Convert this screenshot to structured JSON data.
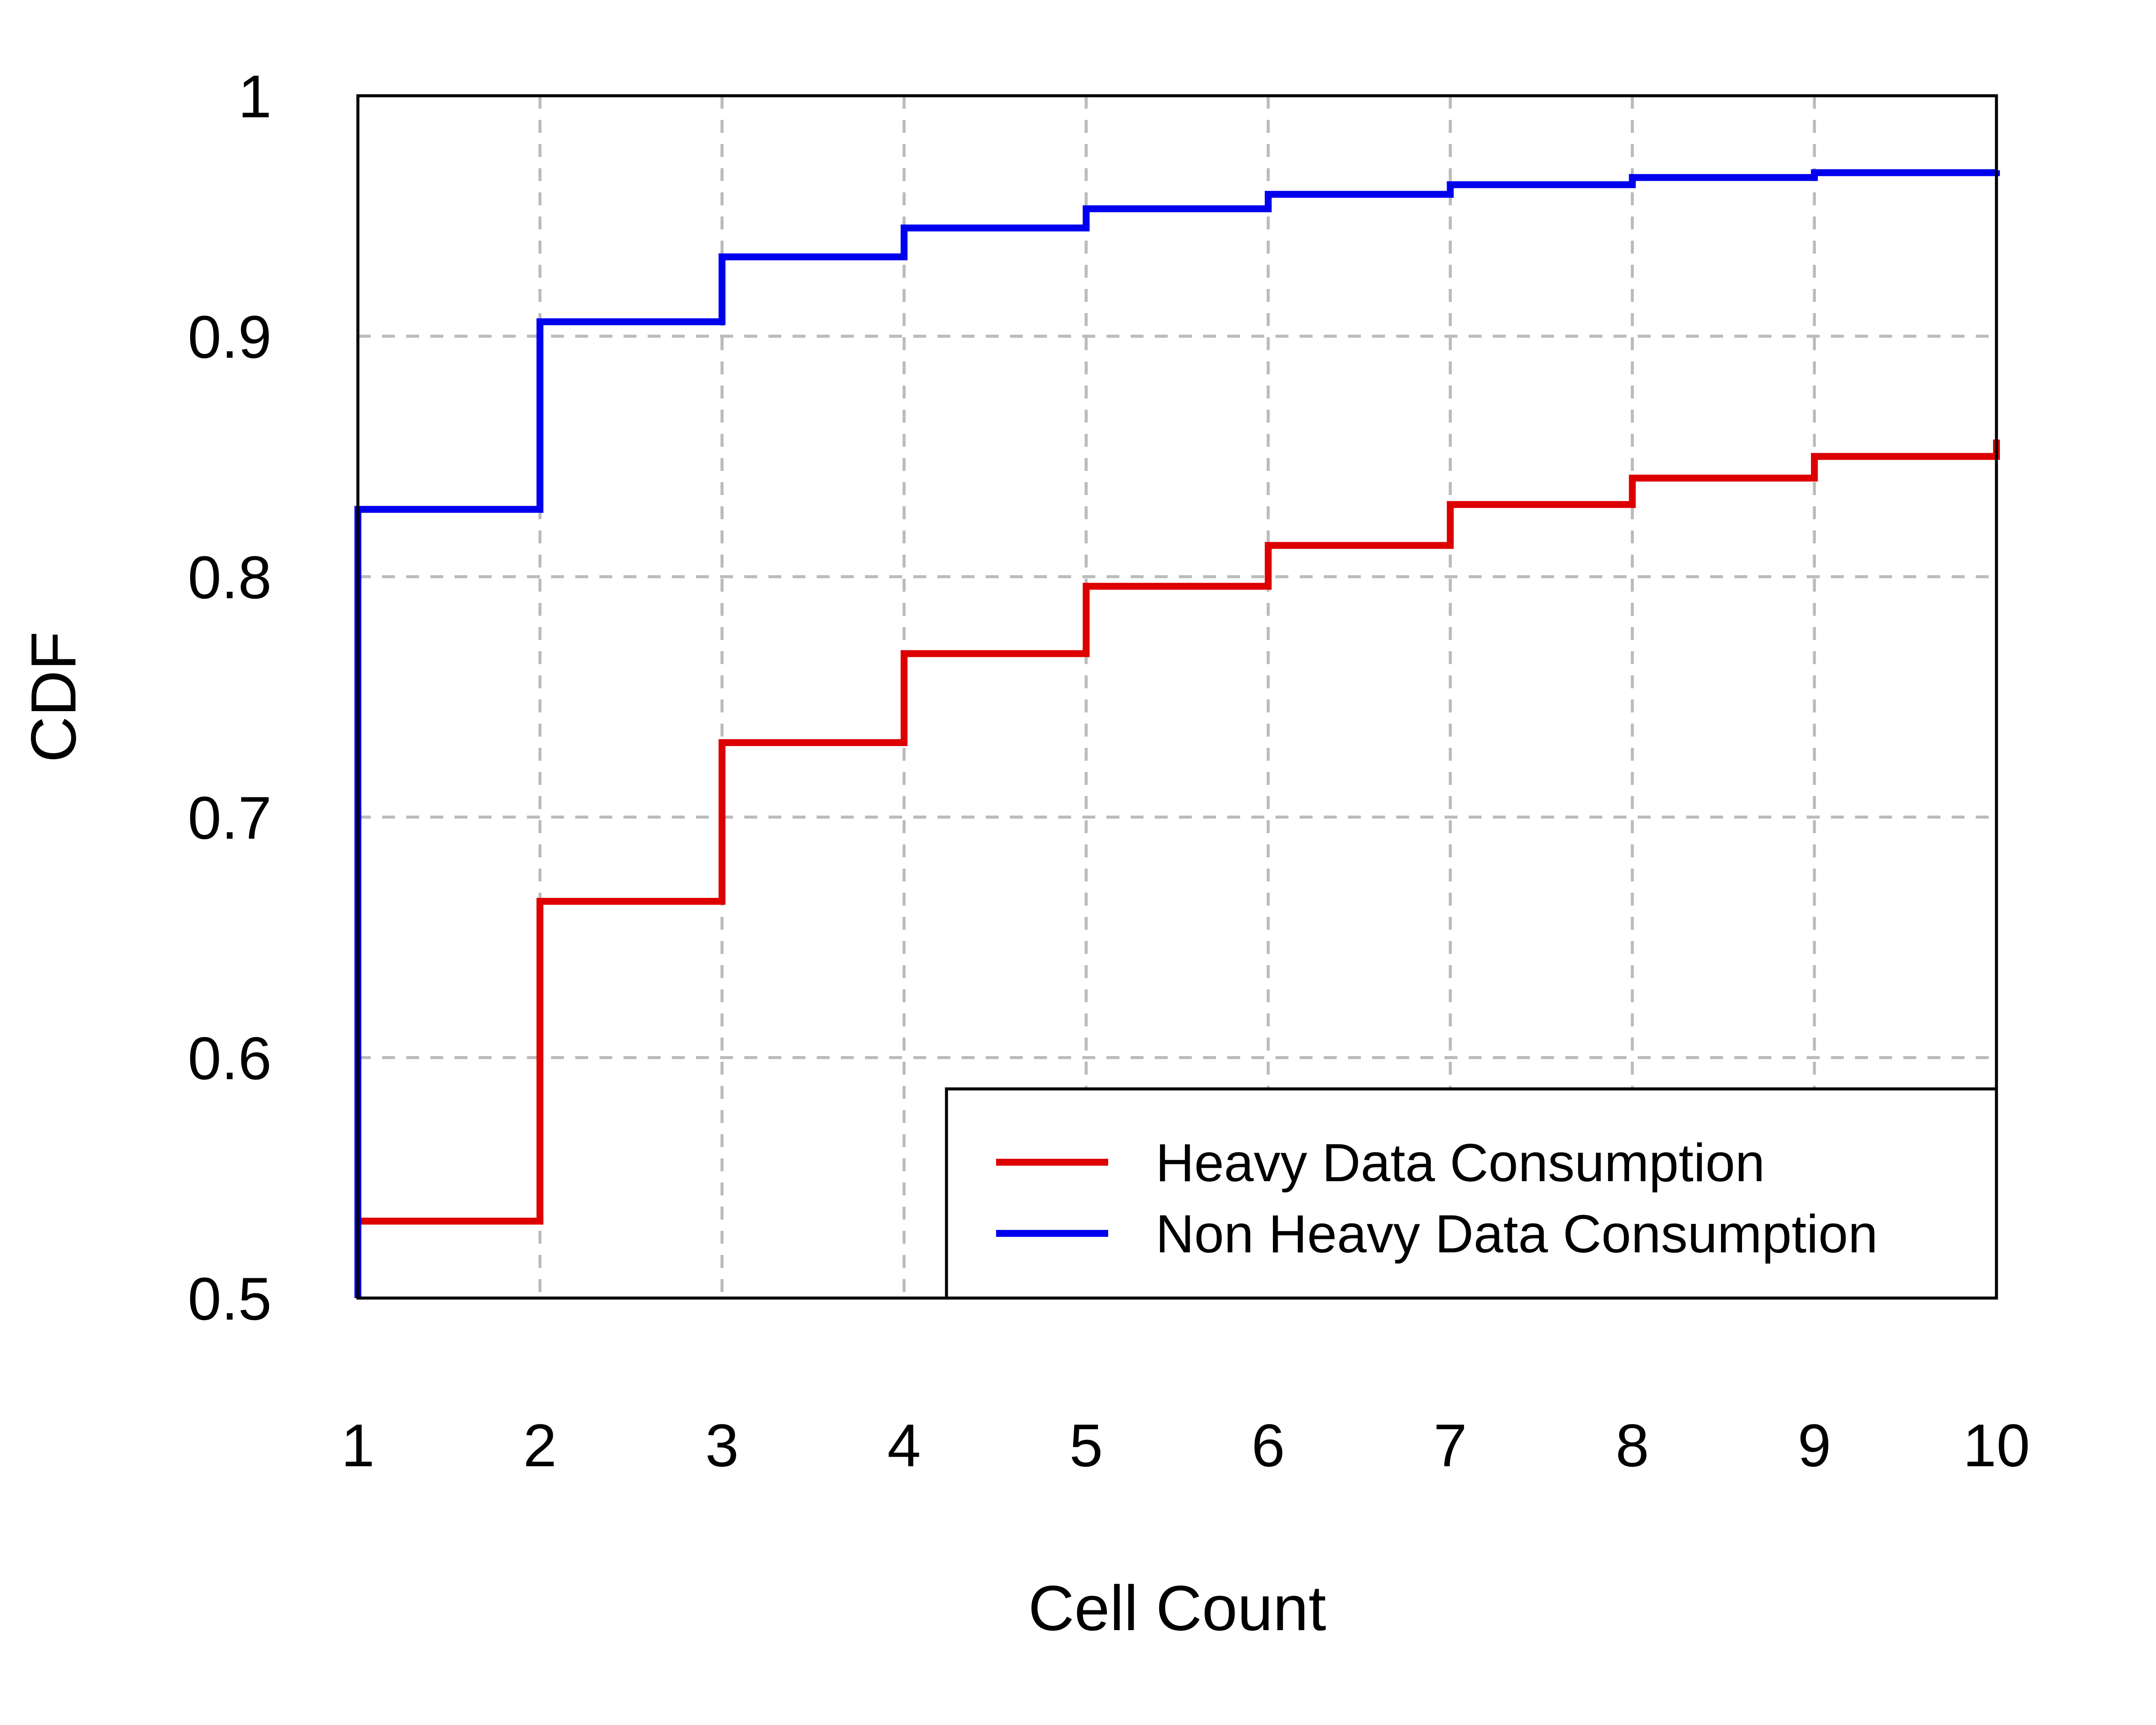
{
  "chart_data": {
    "type": "line",
    "step": true,
    "xlabel": "Cell Count",
    "ylabel": "CDF",
    "xlim": [
      1,
      10
    ],
    "ylim": [
      0.5,
      1
    ],
    "x_ticks": [
      "1",
      "2",
      "3",
      "4",
      "5",
      "6",
      "7",
      "8",
      "9",
      "10"
    ],
    "y_ticks": [
      "0.5",
      "0.6",
      "0.7",
      "0.8",
      "0.9",
      "1"
    ],
    "grid": true,
    "legend_position": "bottom-right",
    "x": [
      1,
      2,
      3,
      4,
      5,
      6,
      7,
      8,
      9,
      10
    ],
    "series": [
      {
        "name": "Heavy Data Consumption",
        "color": "#dd0000",
        "values": [
          0.532,
          0.665,
          0.731,
          0.768,
          0.796,
          0.813,
          0.83,
          0.841,
          0.85,
          0.857
        ]
      },
      {
        "name": "Non Heavy Data Consumption",
        "color": "#0000ee",
        "values": [
          0.828,
          0.906,
          0.933,
          0.945,
          0.953,
          0.959,
          0.963,
          0.966,
          0.968,
          0.969
        ]
      }
    ]
  }
}
